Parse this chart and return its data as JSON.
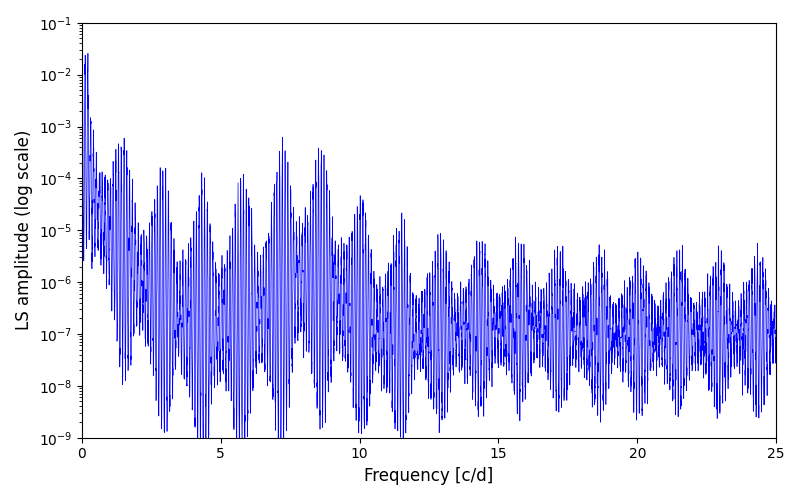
{
  "xlabel": "Frequency [c/d]",
  "ylabel": "LS amplitude (log scale)",
  "line_color": "#0000ff",
  "xlim": [
    0,
    25
  ],
  "ylim_log_min": -9,
  "ylim_log_max": -1,
  "freq_max": 25,
  "n_points": 8000,
  "seed": 42,
  "figsize": [
    8.0,
    5.0
  ],
  "dpi": 100,
  "background_color": "#ffffff"
}
